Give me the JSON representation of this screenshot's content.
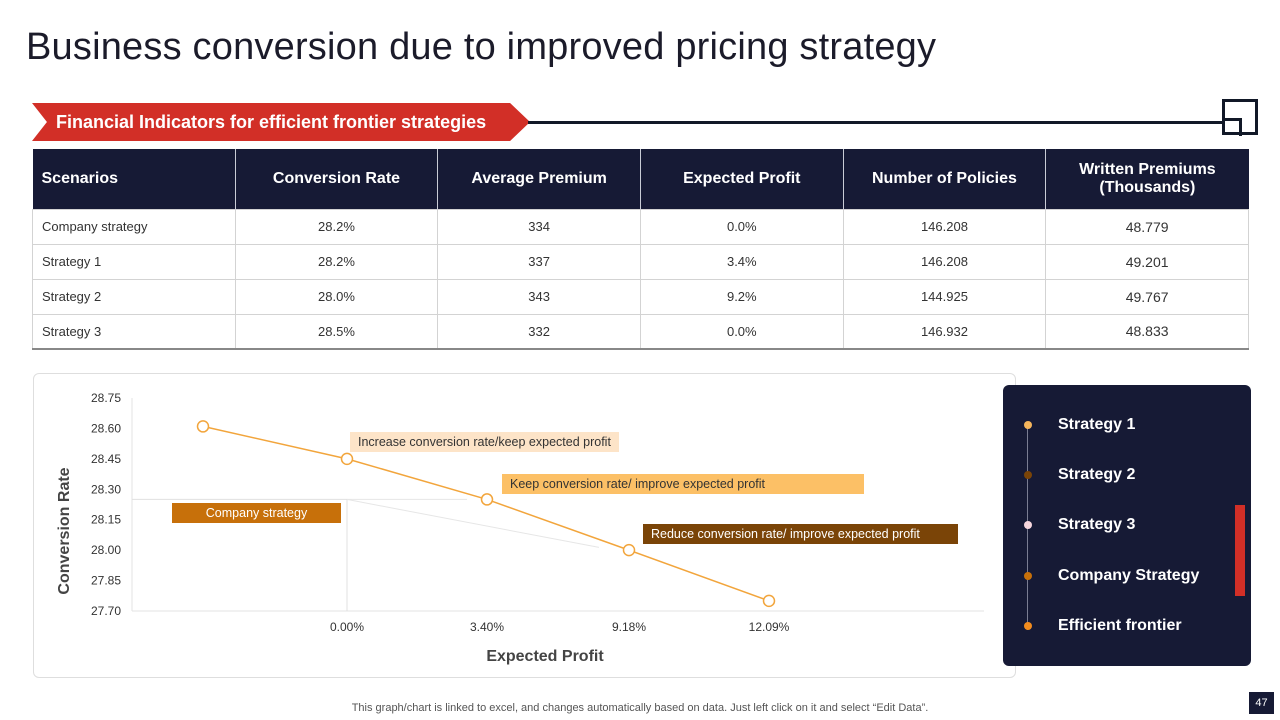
{
  "title": "Business conversion due to improved pricing strategy",
  "banner": {
    "text": "Financial Indicators for efficient frontier strategies"
  },
  "table": {
    "headers": [
      "Scenarios",
      "Conversion Rate",
      "Average Premium",
      "Expected Profit",
      "Number of Policies",
      "Written Premiums (Thousands)"
    ],
    "rows": [
      [
        "Company strategy",
        "28.2%",
        "334",
        "0.0%",
        "146.208",
        "48.779"
      ],
      [
        "Strategy 1",
        "28.2%",
        "337",
        "3.4%",
        "146.208",
        "49.201"
      ],
      [
        "Strategy 2",
        "28.0%",
        "343",
        "9.2%",
        "144.925",
        "49.767"
      ],
      [
        "Strategy 3",
        "28.5%",
        "332",
        "0.0%",
        "146.932",
        "48.833"
      ]
    ]
  },
  "chart_data": {
    "type": "line",
    "xlabel": "Expected Profit",
    "ylabel": "Conversion Rate",
    "y_ticks": [
      "28.75",
      "28.60",
      "28.45",
      "28.30",
      "28.15",
      "28.00",
      "27.85",
      "27.70"
    ],
    "ylim": [
      27.7,
      28.75
    ],
    "x_ticks": [
      "0.00%",
      "3.40%",
      "9.18%",
      "12.09%"
    ],
    "series": [
      {
        "name": "Efficient frontier",
        "color": "#f2a53c",
        "points": [
          {
            "x_index": -1,
            "y": 28.61
          },
          {
            "x_index": 0,
            "y": 28.45
          },
          {
            "x_index": 1,
            "y": 28.25
          },
          {
            "x_index": 2,
            "y": 28.0
          },
          {
            "x_index": 3,
            "y": 27.75
          }
        ]
      }
    ],
    "reference_point": {
      "x_index": 0,
      "y": 28.25
    },
    "annotations": [
      {
        "text": "Increase conversion rate/keep expected profit",
        "bg": "#fde4c8",
        "color": "#333333"
      },
      {
        "text": "Keep conversion rate/ improve expected profit",
        "bg": "#fcc066",
        "color": "#333333"
      },
      {
        "text": "Company strategy",
        "bg": "#c7700a",
        "color": "#ffffff"
      },
      {
        "text": "Reduce conversion rate/ improve expected profit",
        "bg": "#7a4407",
        "color": "#ffffff"
      }
    ]
  },
  "legend": [
    {
      "label": "Strategy 1",
      "color": "#f5b55c"
    },
    {
      "label": "Strategy 2",
      "color": "#7a4407"
    },
    {
      "label": "Strategy 3",
      "color": "#f6d6dd"
    },
    {
      "label": "Company Strategy",
      "color": "#c7700a"
    },
    {
      "label": "Efficient frontier",
      "color": "#f28c1e"
    }
  ],
  "footnote": "This graph/chart is linked to excel,  and changes automatically based on data. Just left click on it and select “Edit Data”.",
  "page_number": "47"
}
